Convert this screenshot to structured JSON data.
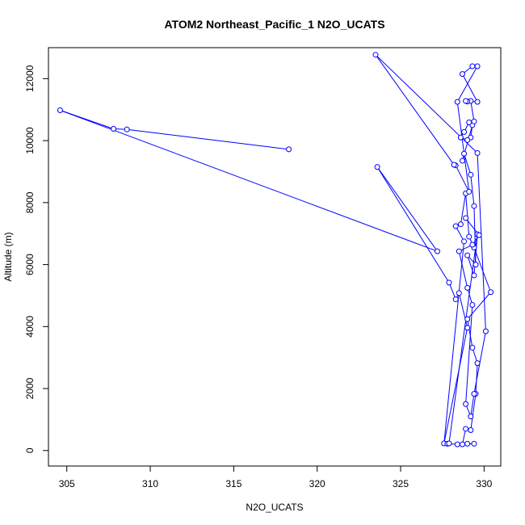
{
  "chart_data": {
    "type": "line",
    "title": "ATOM2 Northeast_Pacific_1 N2O_UCATS",
    "xlabel": "N2O_UCATS",
    "ylabel": "Altitude (m)",
    "xlim": [
      303.9,
      631.0
    ],
    "ylim": [
      -500,
      13000
    ],
    "x_ticks": [
      305,
      310,
      315,
      320,
      325,
      330
    ],
    "y_ticks": [
      0,
      2000,
      4000,
      6000,
      8000,
      10000,
      12000
    ],
    "series_color": "#0000ff",
    "marker": "open-circle",
    "series": [
      {
        "points": [
          [
            318.3,
            9720
          ],
          [
            308.6,
            10360
          ],
          [
            307.8,
            10380
          ],
          [
            304.6,
            10980
          ],
          [
            327.2,
            6430
          ],
          [
            323.6,
            9150
          ],
          [
            327.9,
            5420
          ],
          [
            328.3,
            4880
          ],
          [
            328.5,
            5080
          ],
          [
            329.0,
            3960
          ],
          [
            327.6,
            230
          ],
          [
            328.8,
            6750
          ],
          [
            328.3,
            7240
          ],
          [
            328.6,
            7300
          ],
          [
            328.9,
            8300
          ],
          [
            329.1,
            6900
          ],
          [
            329.4,
            6550
          ],
          [
            330.4,
            5110
          ],
          [
            329.0,
            4240
          ],
          [
            329.3,
            3320
          ],
          [
            329.6,
            2820
          ],
          [
            329.5,
            1830
          ],
          [
            329.2,
            660
          ],
          [
            328.9,
            700
          ],
          [
            328.7,
            200
          ],
          [
            329.0,
            220
          ],
          [
            329.4,
            220
          ],
          [
            328.4,
            200
          ],
          [
            327.8,
            220
          ],
          [
            327.9,
            230
          ],
          [
            329.6,
            6980
          ],
          [
            329.4,
            5650
          ],
          [
            329.0,
            6300
          ],
          [
            329.5,
            6000
          ],
          [
            329.4,
            7890
          ],
          [
            329.2,
            8900
          ],
          [
            328.8,
            9580
          ],
          [
            328.7,
            9350
          ],
          [
            329.3,
            10500
          ],
          [
            329.2,
            10100
          ],
          [
            329.0,
            10020
          ],
          [
            328.6,
            10100
          ],
          [
            328.8,
            10280
          ],
          [
            329.1,
            10590
          ],
          [
            329.4,
            10620
          ],
          [
            329.2,
            11280
          ],
          [
            329.0,
            11260
          ],
          [
            328.9,
            11280
          ],
          [
            329.6,
            11250
          ],
          [
            328.7,
            12150
          ],
          [
            329.3,
            12400
          ],
          [
            329.6,
            12400
          ],
          [
            328.4,
            11250
          ],
          [
            329.1,
            8350
          ],
          [
            328.3,
            9200
          ],
          [
            328.2,
            9220
          ],
          [
            323.5,
            12770
          ],
          [
            329.6,
            9600
          ],
          [
            330.1,
            3850
          ],
          [
            329.4,
            1830
          ],
          [
            329.2,
            1100
          ],
          [
            328.9,
            1500
          ],
          [
            329.3,
            4700
          ],
          [
            329.0,
            5250
          ],
          [
            328.5,
            6430
          ],
          [
            329.3,
            6640
          ],
          [
            329.7,
            6950
          ],
          [
            328.9,
            7500
          ]
        ]
      }
    ]
  }
}
